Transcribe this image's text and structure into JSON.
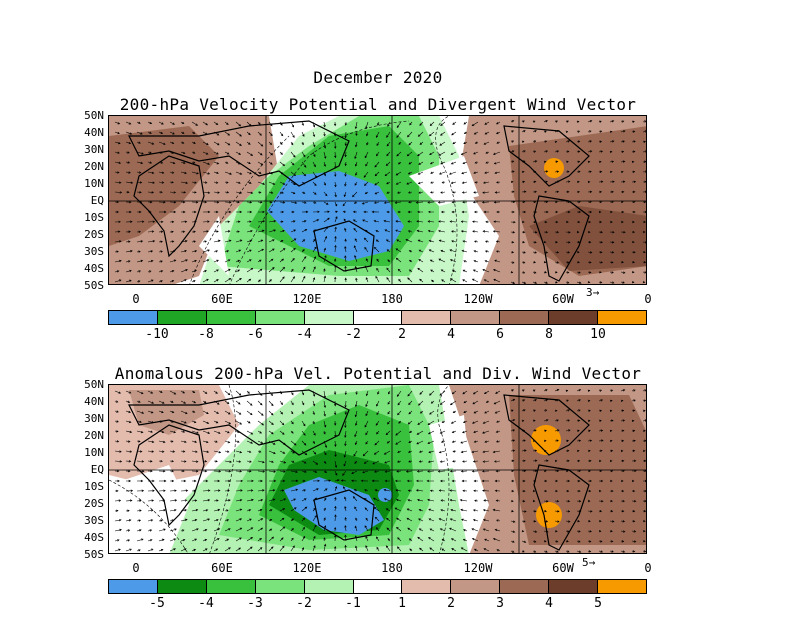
{
  "title": "December 2020",
  "panels": [
    {
      "subtitle": "200-hPa Velocity Potential and Divergent Wind Vector",
      "ref_vector": "3",
      "colorbar": {
        "labels": [
          "-10",
          "-8",
          "-6",
          "-4",
          "-2",
          "2",
          "4",
          "6",
          "8",
          "10"
        ],
        "colors": [
          "#4d9ae8",
          "#1fa624",
          "#39c13d",
          "#7ae37b",
          "#c8f7c8",
          "#ffffff",
          "#e3bcae",
          "#c39785",
          "#9c6a54",
          "#6b3d2a",
          "#f79a00"
        ]
      }
    },
    {
      "subtitle": "Anomalous 200-hPa Vel. Potential and Div. Wind Vector",
      "ref_vector": "5",
      "colorbar": {
        "labels": [
          "-5",
          "-4",
          "-3",
          "-2",
          "-1",
          "1",
          "2",
          "3",
          "4",
          "5"
        ],
        "colors": [
          "#4d9ae8",
          "#0c8a12",
          "#39c13d",
          "#7ae37b",
          "#b4f2b3",
          "#ffffff",
          "#e3bcae",
          "#c39785",
          "#9c6a54",
          "#6b3d2a",
          "#f79a00"
        ]
      }
    }
  ],
  "lat_labels": [
    "50N",
    "40N",
    "30N",
    "20N",
    "10N",
    "EQ",
    "10S",
    "20S",
    "30S",
    "40S",
    "50S"
  ],
  "lon_labels": [
    "0",
    "60E",
    "120E",
    "180",
    "120W",
    "60W",
    "0"
  ]
}
